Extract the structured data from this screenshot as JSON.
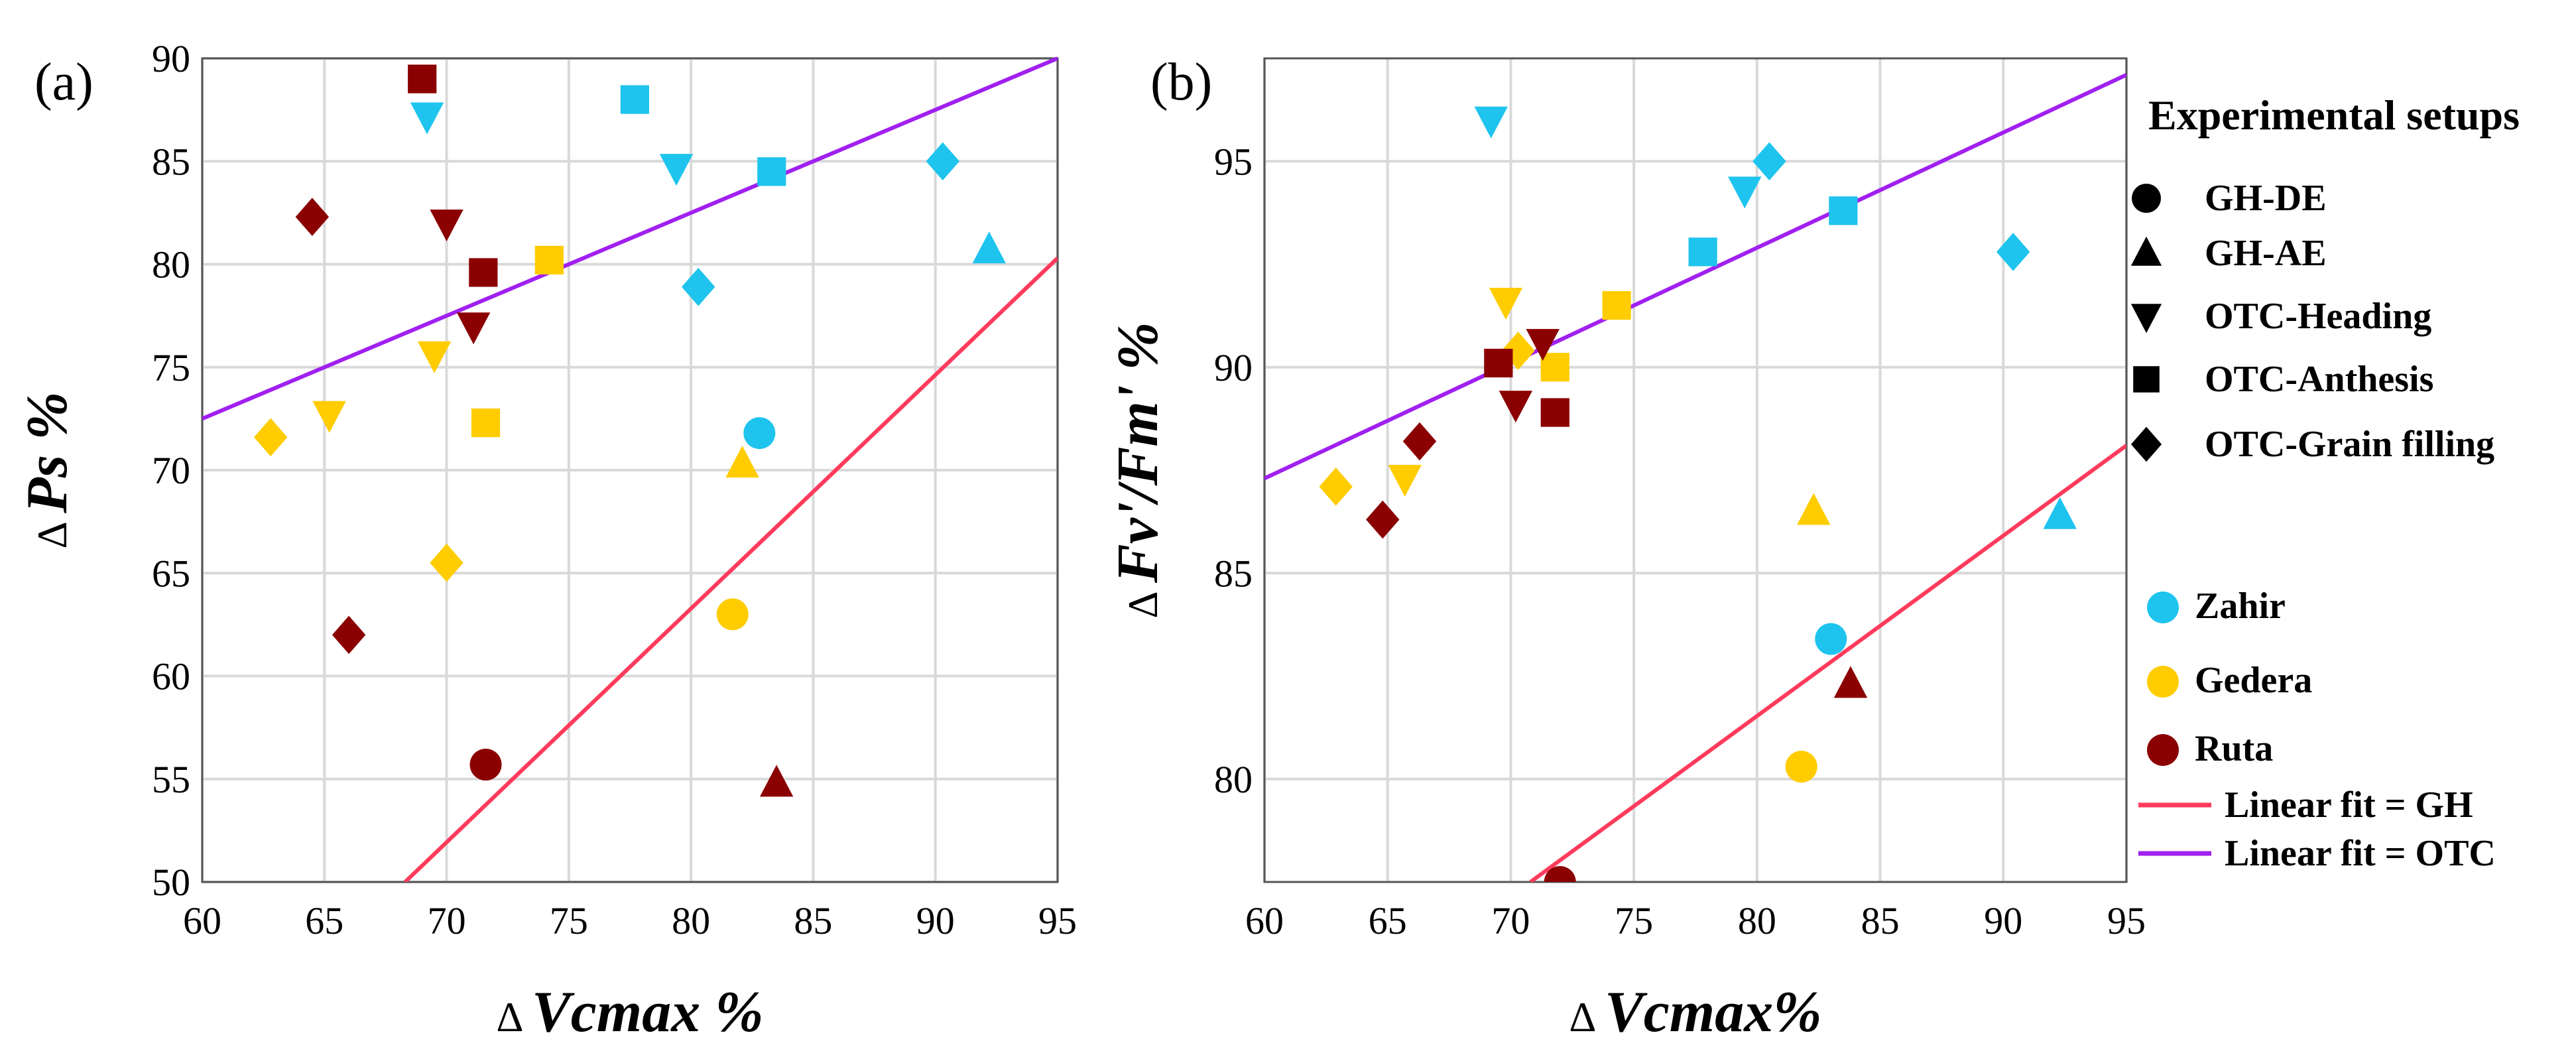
{
  "figure": {
    "colors": {
      "Zahir": "#1EC4EE",
      "Gedera": "#FFCC00",
      "Ruta": "#8B0000",
      "legend_marker": "#000000",
      "fit_GH": "#FF3B5C",
      "fit_OTC": "#A020F0",
      "grid": "#D9D9D9",
      "plot_bg": "#FFFFFF"
    },
    "legend": {
      "title": "Experimental setups",
      "setups": [
        {
          "key": "GH-DE",
          "label": "GH-DE",
          "marker": "circle"
        },
        {
          "key": "GH-AE",
          "label": "GH-AE",
          "marker": "triangle-up"
        },
        {
          "key": "OTC-Heading",
          "label": "OTC-Heading",
          "marker": "triangle-down"
        },
        {
          "key": "OTC-Anthesis",
          "label": "OTC-Anthesis",
          "marker": "square"
        },
        {
          "key": "OTC-Grain filling",
          "label": "OTC-Grain filling",
          "marker": "diamond"
        }
      ],
      "cultivars": [
        {
          "key": "Zahir",
          "label": "Zahir"
        },
        {
          "key": "Gedera",
          "label": "Gedera"
        },
        {
          "key": "Ruta",
          "label": "Ruta"
        }
      ],
      "fits": [
        {
          "key": "GH",
          "label": "Linear fit = GH"
        },
        {
          "key": "OTC",
          "label": "Linear fit = OTC"
        }
      ]
    }
  },
  "chart_data": [
    {
      "type": "scatter",
      "panel_label": "(a)",
      "xlabel_prefix": "Δ",
      "xlabel": "Vcmax %",
      "ylabel_prefix": "Δ",
      "ylabel": "Ps %",
      "xlim": [
        60,
        95
      ],
      "ylim": [
        50,
        90
      ],
      "x_ticks": [
        60,
        65,
        70,
        75,
        80,
        85,
        90,
        95
      ],
      "y_ticks": [
        50,
        55,
        60,
        65,
        70,
        75,
        80,
        85,
        90
      ],
      "grid": true,
      "points": [
        {
          "x": 69,
          "y": 89,
          "cultivar": "Ruta",
          "setup": "OTC-Anthesis"
        },
        {
          "x": 69.2,
          "y": 87.2,
          "cultivar": "Zahir",
          "setup": "OTC-Heading"
        },
        {
          "x": 77.7,
          "y": 88,
          "cultivar": "Zahir",
          "setup": "OTC-Anthesis"
        },
        {
          "x": 79.4,
          "y": 84.7,
          "cultivar": "Zahir",
          "setup": "OTC-Heading"
        },
        {
          "x": 83.3,
          "y": 84.5,
          "cultivar": "Zahir",
          "setup": "OTC-Anthesis"
        },
        {
          "x": 90.3,
          "y": 85,
          "cultivar": "Zahir",
          "setup": "OTC-Grain filling"
        },
        {
          "x": 92.2,
          "y": 80.7,
          "cultivar": "Zahir",
          "setup": "GH-AE"
        },
        {
          "x": 80.3,
          "y": 78.9,
          "cultivar": "Zahir",
          "setup": "OTC-Grain filling"
        },
        {
          "x": 82.8,
          "y": 71.8,
          "cultivar": "Zahir",
          "setup": "GH-DE"
        },
        {
          "x": 64.5,
          "y": 82.3,
          "cultivar": "Ruta",
          "setup": "OTC-Grain filling"
        },
        {
          "x": 70,
          "y": 82,
          "cultivar": "Ruta",
          "setup": "OTC-Heading"
        },
        {
          "x": 71.5,
          "y": 79.6,
          "cultivar": "Ruta",
          "setup": "OTC-Anthesis"
        },
        {
          "x": 71.1,
          "y": 77,
          "cultivar": "Ruta",
          "setup": "OTC-Heading"
        },
        {
          "x": 66,
          "y": 62,
          "cultivar": "Ruta",
          "setup": "OTC-Grain filling"
        },
        {
          "x": 71.6,
          "y": 55.7,
          "cultivar": "Ruta",
          "setup": "GH-DE"
        },
        {
          "x": 83.5,
          "y": 54.8,
          "cultivar": "Ruta",
          "setup": "GH-AE"
        },
        {
          "x": 74.2,
          "y": 80.2,
          "cultivar": "Gedera",
          "setup": "OTC-Anthesis"
        },
        {
          "x": 69.5,
          "y": 75.6,
          "cultivar": "Gedera",
          "setup": "OTC-Heading"
        },
        {
          "x": 65.2,
          "y": 72.7,
          "cultivar": "Gedera",
          "setup": "OTC-Heading"
        },
        {
          "x": 62.8,
          "y": 71.6,
          "cultivar": "Gedera",
          "setup": "OTC-Grain filling"
        },
        {
          "x": 71.6,
          "y": 72.3,
          "cultivar": "Gedera",
          "setup": "OTC-Anthesis"
        },
        {
          "x": 82.1,
          "y": 70.3,
          "cultivar": "Gedera",
          "setup": "GH-AE"
        },
        {
          "x": 70,
          "y": 65.5,
          "cultivar": "Gedera",
          "setup": "OTC-Grain filling"
        },
        {
          "x": 81.7,
          "y": 63,
          "cultivar": "Gedera",
          "setup": "GH-DE"
        }
      ],
      "fit_lines": [
        {
          "name": "GH",
          "x": [
            68.3,
            95
          ],
          "y": [
            50,
            80.3
          ]
        },
        {
          "name": "OTC",
          "x": [
            60,
            95
          ],
          "y": [
            72.5,
            90
          ]
        }
      ]
    },
    {
      "type": "scatter",
      "panel_label": "(b)",
      "xlabel_prefix": "Δ",
      "xlabel": "Vcmax%",
      "ylabel_prefix": "Δ",
      "ylabel": "Fv'/Fm' %",
      "xlim": [
        60,
        95
      ],
      "ylim": [
        77.5,
        97.5
      ],
      "x_ticks": [
        60,
        65,
        70,
        75,
        80,
        85,
        90,
        95
      ],
      "y_ticks": [
        80,
        85,
        90,
        95
      ],
      "grid": true,
      "points": [
        {
          "x": 69.2,
          "y": 96,
          "cultivar": "Zahir",
          "setup": "OTC-Heading"
        },
        {
          "x": 79.5,
          "y": 94.3,
          "cultivar": "Zahir",
          "setup": "OTC-Heading"
        },
        {
          "x": 80.5,
          "y": 95,
          "cultivar": "Zahir",
          "setup": "OTC-Grain filling"
        },
        {
          "x": 83.5,
          "y": 93.8,
          "cultivar": "Zahir",
          "setup": "OTC-Anthesis"
        },
        {
          "x": 77.8,
          "y": 92.8,
          "cultivar": "Zahir",
          "setup": "OTC-Anthesis"
        },
        {
          "x": 90.4,
          "y": 92.8,
          "cultivar": "Zahir",
          "setup": "OTC-Grain filling"
        },
        {
          "x": 92.3,
          "y": 86.4,
          "cultivar": "Zahir",
          "setup": "GH-AE"
        },
        {
          "x": 83,
          "y": 83.4,
          "cultivar": "Zahir",
          "setup": "GH-DE"
        },
        {
          "x": 69.8,
          "y": 91.6,
          "cultivar": "Gedera",
          "setup": "OTC-Heading"
        },
        {
          "x": 74.3,
          "y": 91.5,
          "cultivar": "Gedera",
          "setup": "OTC-Anthesis"
        },
        {
          "x": 70.3,
          "y": 90.4,
          "cultivar": "Gedera",
          "setup": "OTC-Grain filling"
        },
        {
          "x": 71.8,
          "y": 90,
          "cultivar": "Gedera",
          "setup": "OTC-Anthesis"
        },
        {
          "x": 62.9,
          "y": 87.1,
          "cultivar": "Gedera",
          "setup": "OTC-Grain filling"
        },
        {
          "x": 65.7,
          "y": 87.3,
          "cultivar": "Gedera",
          "setup": "OTC-Heading"
        },
        {
          "x": 82.3,
          "y": 86.5,
          "cultivar": "Gedera",
          "setup": "GH-AE"
        },
        {
          "x": 81.8,
          "y": 80.3,
          "cultivar": "Gedera",
          "setup": "GH-DE"
        },
        {
          "x": 69.5,
          "y": 90.1,
          "cultivar": "Ruta",
          "setup": "OTC-Anthesis"
        },
        {
          "x": 71.3,
          "y": 90.6,
          "cultivar": "Ruta",
          "setup": "OTC-Heading"
        },
        {
          "x": 70.2,
          "y": 89.1,
          "cultivar": "Ruta",
          "setup": "OTC-Heading"
        },
        {
          "x": 71.8,
          "y": 88.9,
          "cultivar": "Ruta",
          "setup": "OTC-Anthesis"
        },
        {
          "x": 66.3,
          "y": 88.2,
          "cultivar": "Ruta",
          "setup": "OTC-Grain filling"
        },
        {
          "x": 64.8,
          "y": 86.3,
          "cultivar": "Ruta",
          "setup": "OTC-Grain filling"
        },
        {
          "x": 83.8,
          "y": 82.3,
          "cultivar": "Ruta",
          "setup": "GH-AE"
        },
        {
          "x": 72,
          "y": 77.5,
          "cultivar": "Ruta",
          "setup": "GH-DE"
        }
      ],
      "fit_lines": [
        {
          "name": "GH",
          "x": [
            70.8,
            95
          ],
          "y": [
            77.5,
            88.1
          ]
        },
        {
          "name": "OTC",
          "x": [
            60,
            95
          ],
          "y": [
            87.3,
            97.1
          ]
        }
      ]
    }
  ]
}
